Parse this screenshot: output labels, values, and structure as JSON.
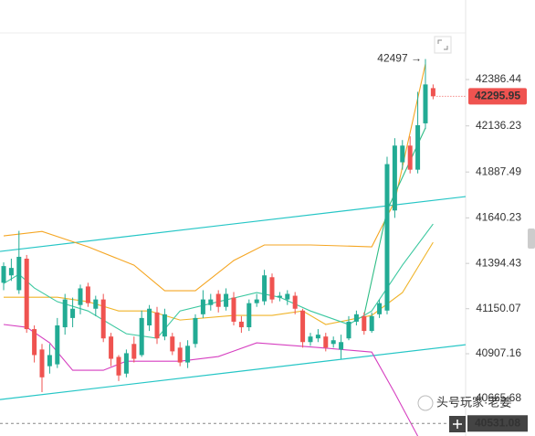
{
  "chart_data": {
    "type": "candlestick",
    "xlim": [
      -0.476,
      60.24
    ],
    "ylim": [
      40463.4,
      42815.4
    ],
    "yticks": [
      42386.44,
      42136.23,
      41887.49,
      41640.23,
      41394.43,
      41150.07,
      40907.16,
      40665.68
    ],
    "up_color": "#22ab94",
    "down_color": "#ef5350",
    "candles": {
      "open": [
        41290,
        41330,
        41250,
        41420,
        41040,
        40930,
        40840,
        40850,
        41050,
        41100,
        41170,
        41270,
        41150,
        41200,
        41000,
        40890,
        40800,
        40960,
        40900,
        41060,
        41130,
        41000,
        41000,
        40940,
        40860,
        40960,
        41120,
        41170,
        41230,
        41160,
        41210,
        41080,
        41050,
        41180,
        41190,
        41320,
        41210,
        41200,
        41220,
        41140,
        40970,
        40990,
        41000,
        40960,
        40930,
        40990,
        41080,
        41110,
        41030,
        41120,
        41140,
        41680,
        41940,
        42030,
        41900,
        42150,
        42340
      ],
      "high": [
        41400,
        41420,
        41570,
        41440,
        41060,
        40960,
        40960,
        41100,
        41230,
        41210,
        41280,
        41290,
        41220,
        41230,
        41020,
        40900,
        40930,
        41000,
        41140,
        41170,
        41160,
        41150,
        41020,
        40970,
        40980,
        41120,
        41250,
        41230,
        41250,
        41260,
        41240,
        41110,
        41200,
        41230,
        41360,
        41340,
        41240,
        41250,
        41240,
        41150,
        41020,
        41040,
        41020,
        41000,
        41010,
        41110,
        41140,
        41130,
        41130,
        41200,
        41970,
        42070,
        42060,
        42080,
        42320,
        42497,
        42360
      ],
      "low": [
        41250,
        41300,
        41230,
        41020,
        40860,
        40700,
        40800,
        40830,
        41010,
        41050,
        41120,
        41160,
        41110,
        40970,
        40840,
        40760,
        40780,
        40860,
        40890,
        41030,
        40960,
        40980,
        40900,
        40840,
        40830,
        40940,
        41100,
        41140,
        41130,
        41140,
        41060,
        41020,
        41030,
        41160,
        41170,
        41180,
        41190,
        41170,
        41120,
        40940,
        40950,
        40970,
        40920,
        40940,
        40880,
        40980,
        41060,
        41010,
        41020,
        41100,
        41120,
        41640,
        41900,
        41880,
        41880,
        42120,
        42280
      ],
      "close": [
        41380,
        41370,
        41430,
        41040,
        40900,
        40780,
        40900,
        41060,
        41200,
        41150,
        41260,
        41180,
        41200,
        40990,
        40880,
        40790,
        40910,
        40880,
        41100,
        41150,
        40990,
        41120,
        40920,
        40860,
        40950,
        41100,
        41200,
        41200,
        41160,
        41230,
        41080,
        41050,
        41180,
        41200,
        41330,
        41200,
        41220,
        41230,
        41150,
        40970,
        41000,
        41010,
        40940,
        40980,
        40970,
        41080,
        41120,
        41030,
        41110,
        41180,
        41930,
        42030,
        42030,
        41900,
        42140,
        42360,
        42295.95
      ]
    },
    "overlays": [
      {
        "color": "#f5a623",
        "x": [
          0,
          5,
          11,
          17,
          21,
          25,
          30,
          34,
          40,
          48,
          51,
          55
        ],
        "values": [
          41543,
          41567,
          41484,
          41385,
          41247,
          41247,
          41410,
          41494,
          41494,
          41484,
          41730,
          42470
        ]
      },
      {
        "color": "#f0b429",
        "x": [
          0,
          7,
          11,
          15,
          19,
          23,
          30,
          35,
          39,
          42,
          48,
          52,
          56
        ],
        "values": [
          41212,
          41212,
          41188,
          41138,
          41138,
          41089,
          41114,
          41114,
          41138,
          41065,
          41114,
          41237,
          41508
        ]
      },
      {
        "color": "#3cc8a0",
        "x": [
          0,
          2,
          4,
          7,
          11,
          16,
          20,
          23,
          28,
          33,
          36,
          40,
          45,
          48,
          52,
          56
        ],
        "values": [
          41286,
          41336,
          41262,
          41188,
          41138,
          41015,
          40991,
          41138,
          41188,
          41237,
          41212,
          41138,
          41065,
          41138,
          41385,
          41607
        ]
      },
      {
        "color": "#2ebd85",
        "x": [
          47,
          50,
          55
        ],
        "values": [
          41114,
          41681,
          42125
        ]
      },
      {
        "color": "#d63fc0",
        "x": [
          0,
          3,
          6,
          9,
          13,
          16,
          23,
          28,
          33,
          41,
          48,
          51,
          54
        ],
        "values": [
          41065,
          41050,
          40966,
          40818,
          40818,
          40867,
          40867,
          40892,
          40966,
          40941,
          40916,
          40695,
          40463
        ]
      }
    ],
    "trendlines": [
      {
        "color": "#26c6c6",
        "x": [
          -0.476,
          60.24
        ],
        "values": [
          41459,
          41755
        ]
      },
      {
        "color": "#26c6c6",
        "x": [
          -0.476,
          60.24
        ],
        "values": [
          40660,
          40956
        ]
      }
    ],
    "last_price": 42295.95,
    "crosshair_price": 40531.08,
    "annotation": {
      "value": 42497,
      "label": "42497 →"
    },
    "watermark": "头号玩家·老姜"
  }
}
